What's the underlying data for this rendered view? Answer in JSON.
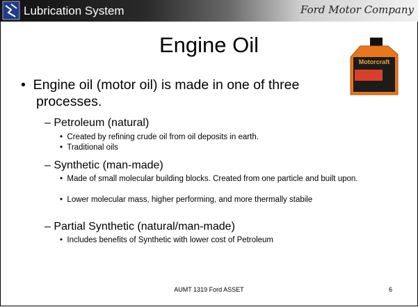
{
  "header": {
    "title": "Lubrication System",
    "company": "Ford Motor Company"
  },
  "slide": {
    "title": "Engine Oil",
    "image_label": "Motorcraft",
    "bullets": [
      {
        "text": "Engine oil (motor oil) is made in one of three processes.",
        "items": [
          {
            "text": "Petroleum (natural)",
            "items": [
              "Created by refining crude oil from oil deposits in earth.",
              "Traditional oils"
            ]
          },
          {
            "text": "Synthetic (man-made)",
            "items": [
              "Made of small molecular building blocks. Created from one particle and built upon.",
              "Lower molecular mass, higher performing, and more thermally stabile"
            ]
          },
          {
            "text": "Partial Synthetic (natural/man-made)",
            "items": [
              "Includes benefits of Synthetic with lower cost of Petroleum"
            ]
          }
        ]
      }
    ]
  },
  "footer": {
    "text": "AUMT 1319 Ford ASSET",
    "page": 6
  }
}
